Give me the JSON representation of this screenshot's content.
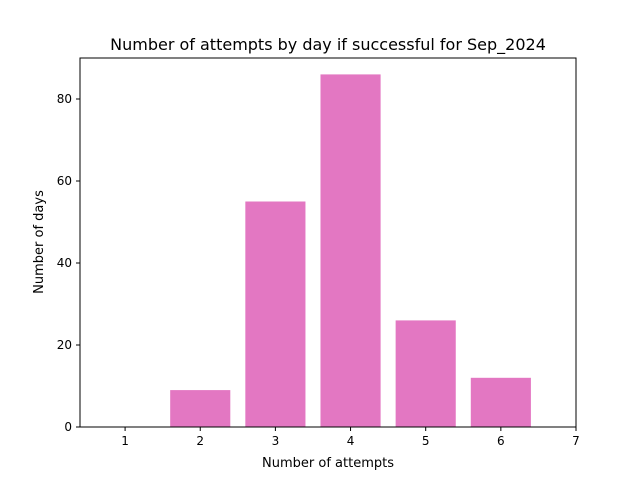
{
  "chart_data": {
    "type": "bar",
    "title": "Number of attempts by day if successful for Sep_2024",
    "xlabel": "Number of attempts",
    "ylabel": "Number of days",
    "categories": [
      1,
      2,
      3,
      4,
      5,
      6
    ],
    "values": [
      0,
      9,
      55,
      86,
      26,
      12
    ],
    "x_ticks": [
      1,
      2,
      3,
      4,
      5,
      6,
      7
    ],
    "y_ticks": [
      0,
      20,
      40,
      60,
      80
    ],
    "xlim": [
      0.4,
      7.0
    ],
    "ylim": [
      0,
      90
    ],
    "bar_color": "#e377c2",
    "grid": false,
    "legend": "none"
  }
}
